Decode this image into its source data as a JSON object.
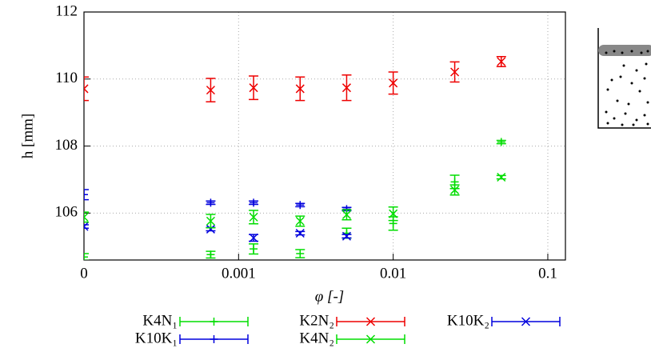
{
  "chart_data": {
    "type": "errorbar",
    "xlabel": "φ [-]",
    "ylabel": "h [mm]",
    "xscale": "log",
    "grid": true,
    "x": [
      0,
      0.00066,
      0.00125,
      0.0025,
      0.005,
      0.01,
      0.025,
      0.05
    ],
    "xlim": [
      0,
      0.13
    ],
    "xticks": [
      0,
      0.001,
      0.01,
      0.1
    ],
    "ylim": [
      104.6,
      112
    ],
    "yticks": [
      106,
      108,
      110,
      112
    ],
    "series": [
      {
        "name": "K4N₁",
        "color": "#00dd00",
        "marker": "plus",
        "values": [
          104.69,
          104.76,
          104.93,
          104.79,
          105.4,
          105.69,
          106.93,
          108.12
        ],
        "errors": [
          0.1,
          0.1,
          0.15,
          0.12,
          0.15,
          0.2,
          0.2,
          0.05
        ]
      },
      {
        "name": "K2N₂",
        "color": "#ee0000",
        "marker": "cross",
        "values": [
          109.71,
          109.67,
          109.74,
          109.71,
          109.74,
          109.88,
          110.21,
          110.52
        ],
        "errors": [
          0.35,
          0.35,
          0.35,
          0.35,
          0.38,
          0.33,
          0.3,
          0.15
        ]
      },
      {
        "name": "K10K₂",
        "color": "#0000dd",
        "marker": "cross",
        "values": [
          105.6,
          105.52,
          105.26,
          105.4,
          105.31,
          null,
          null,
          null
        ],
        "errors": [
          0.05,
          0.05,
          0.1,
          0.05,
          0.05,
          null,
          null,
          null
        ]
      },
      {
        "name": "K10K₁",
        "color": "#0000dd",
        "marker": "plus",
        "values": [
          106.55,
          106.31,
          106.31,
          106.24,
          106.12,
          null,
          null,
          null
        ],
        "errors": [
          0.15,
          0.05,
          0.05,
          0.05,
          0.05,
          null,
          null,
          null
        ]
      },
      {
        "name": "K4N₂",
        "color": "#00dd00",
        "marker": "cross",
        "values": [
          105.88,
          105.76,
          105.88,
          105.76,
          105.95,
          105.98,
          106.69,
          107.07
        ],
        "errors": [
          0.15,
          0.2,
          0.2,
          0.15,
          0.15,
          0.2,
          0.15,
          0.05
        ]
      }
    ]
  }
}
